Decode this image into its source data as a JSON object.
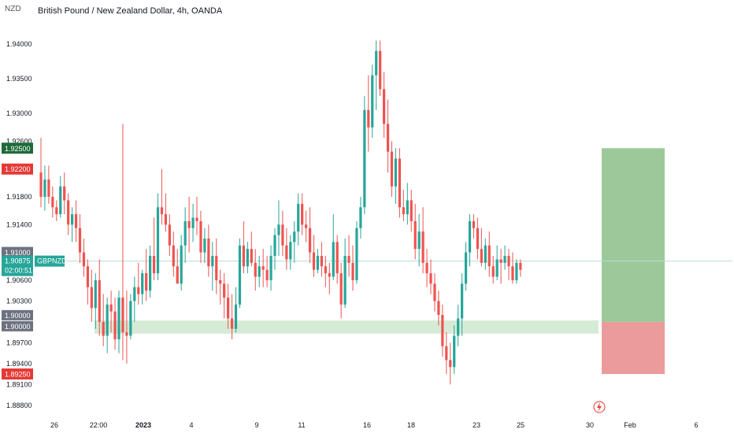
{
  "header": {
    "currency": "NZD",
    "title": "British Pound / New Zealand Dollar, 4h, OANDA"
  },
  "chart_data": {
    "type": "candlestick",
    "symbol": "GBPNZD",
    "timeframe": "4h",
    "ylim": [
      1.8865,
      1.9435
    ],
    "y_ticks": [
      "1.94000",
      "1.93500",
      "1.93000",
      "1.92600",
      "1.91800",
      "1.91400",
      "1.90600",
      "1.90300",
      "1.89700",
      "1.89400",
      "1.89100",
      "1.88800"
    ],
    "x_ticks": [
      "26",
      "22:00",
      "2023",
      "4",
      "9",
      "11",
      "16",
      "18",
      "23",
      "25",
      "30",
      "Feb",
      "6"
    ],
    "candles": [
      [
        1.9215,
        1.9265,
        1.9165,
        1.918
      ],
      [
        1.918,
        1.9225,
        1.916,
        1.9205
      ],
      [
        1.9205,
        1.9225,
        1.917,
        1.918
      ],
      [
        1.918,
        1.9195,
        1.915,
        1.9165
      ],
      [
        1.9165,
        1.9175,
        1.9145,
        1.9155
      ],
      [
        1.9155,
        1.921,
        1.915,
        1.9195
      ],
      [
        1.9195,
        1.9215,
        1.9155,
        1.9175
      ],
      [
        1.9175,
        1.9185,
        1.9125,
        1.914
      ],
      [
        1.914,
        1.9165,
        1.9115,
        1.9155
      ],
      [
        1.9155,
        1.9175,
        1.9115,
        1.9135
      ],
      [
        1.9135,
        1.9155,
        1.9085,
        1.91
      ],
      [
        1.91,
        1.912,
        1.9065,
        1.908
      ],
      [
        1.908,
        1.909,
        1.9025,
        1.905
      ],
      [
        1.905,
        1.9075,
        1.9,
        1.902
      ],
      [
        1.902,
        1.907,
        1.899,
        1.906
      ],
      [
        1.906,
        1.909,
        1.898,
        1.9
      ],
      [
        1.9,
        1.904,
        1.8965,
        1.898
      ],
      [
        1.898,
        1.9035,
        1.8955,
        1.9025
      ],
      [
        1.9025,
        1.9045,
        1.8985,
        1.9015
      ],
      [
        1.9015,
        1.9035,
        1.896,
        1.8975
      ],
      [
        1.8975,
        1.9045,
        1.8955,
        1.9035
      ],
      [
        1.9035,
        1.9285,
        1.8945,
        1.8985
      ],
      [
        1.8985,
        1.9045,
        1.894,
        1.898
      ],
      [
        1.898,
        1.904,
        1.8975,
        1.903
      ],
      [
        1.903,
        1.9065,
        1.9,
        1.905
      ],
      [
        1.905,
        1.9085,
        1.9025,
        1.904
      ],
      [
        1.904,
        1.9075,
        1.9025,
        1.907
      ],
      [
        1.907,
        1.9105,
        1.903,
        1.9045
      ],
      [
        1.9045,
        1.911,
        1.9035,
        1.9095
      ],
      [
        1.9095,
        1.915,
        1.906,
        1.907
      ],
      [
        1.907,
        1.9185,
        1.906,
        1.9165
      ],
      [
        1.9165,
        1.922,
        1.914,
        1.9155
      ],
      [
        1.9155,
        1.9185,
        1.913,
        1.914
      ],
      [
        1.914,
        1.9155,
        1.9095,
        1.911
      ],
      [
        1.911,
        1.913,
        1.9065,
        1.908
      ],
      [
        1.908,
        1.9105,
        1.9055,
        1.9055
      ],
      [
        1.9055,
        1.9125,
        1.9045,
        1.911
      ],
      [
        1.911,
        1.9165,
        1.9085,
        1.9145
      ],
      [
        1.9145,
        1.918,
        1.91,
        1.9135
      ],
      [
        1.9135,
        1.917,
        1.9115,
        1.915
      ],
      [
        1.915,
        1.918,
        1.9125,
        1.9145
      ],
      [
        1.9145,
        1.916,
        1.9085,
        1.91
      ],
      [
        1.91,
        1.9135,
        1.9085,
        1.912
      ],
      [
        1.912,
        1.914,
        1.9065,
        1.908
      ],
      [
        1.908,
        1.9115,
        1.9045,
        1.9095
      ],
      [
        1.9095,
        1.912,
        1.904,
        1.906
      ],
      [
        1.906,
        1.9075,
        1.9025,
        1.9055
      ],
      [
        1.9055,
        1.907,
        1.9005,
        1.9035
      ],
      [
        1.9035,
        1.9055,
        1.899,
        1.9005
      ],
      [
        1.9005,
        1.904,
        1.8975,
        1.899
      ],
      [
        1.899,
        1.905,
        1.8985,
        1.9025
      ],
      [
        1.9025,
        1.912,
        1.902,
        1.911
      ],
      [
        1.911,
        1.9145,
        1.907,
        1.908
      ],
      [
        1.908,
        1.9115,
        1.907,
        1.9105
      ],
      [
        1.9105,
        1.913,
        1.908,
        1.9085
      ],
      [
        1.9085,
        1.9105,
        1.9045,
        1.9065
      ],
      [
        1.9065,
        1.9095,
        1.905,
        1.908
      ],
      [
        1.908,
        1.9105,
        1.905,
        1.9075
      ],
      [
        1.9075,
        1.9095,
        1.905,
        1.906
      ],
      [
        1.906,
        1.911,
        1.9045,
        1.9095
      ],
      [
        1.9095,
        1.9135,
        1.9075,
        1.9125
      ],
      [
        1.9125,
        1.9175,
        1.9095,
        1.914
      ],
      [
        1.914,
        1.916,
        1.9095,
        1.911
      ],
      [
        1.911,
        1.9135,
        1.9075,
        1.909
      ],
      [
        1.909,
        1.9125,
        1.9075,
        1.9115
      ],
      [
        1.9115,
        1.9145,
        1.9085,
        1.913
      ],
      [
        1.913,
        1.9185,
        1.911,
        1.917
      ],
      [
        1.917,
        1.9185,
        1.9125,
        1.914
      ],
      [
        1.914,
        1.916,
        1.9115,
        1.9135
      ],
      [
        1.9135,
        1.9165,
        1.9085,
        1.91
      ],
      [
        1.91,
        1.9125,
        1.9065,
        1.9075
      ],
      [
        1.9075,
        1.9105,
        1.907,
        1.9095
      ],
      [
        1.9095,
        1.9115,
        1.9065,
        1.908
      ],
      [
        1.908,
        1.9095,
        1.905,
        1.907
      ],
      [
        1.907,
        1.9085,
        1.904,
        1.9065
      ],
      [
        1.9065,
        1.9155,
        1.906,
        1.9115
      ],
      [
        1.9115,
        1.9125,
        1.9055,
        1.907
      ],
      [
        1.907,
        1.9085,
        1.9005,
        1.9025
      ],
      [
        1.9025,
        1.912,
        1.902,
        1.9095
      ],
      [
        1.9095,
        1.9125,
        1.9065,
        1.9085
      ],
      [
        1.9085,
        1.911,
        1.9045,
        1.906
      ],
      [
        1.906,
        1.9145,
        1.9055,
        1.9135
      ],
      [
        1.9135,
        1.918,
        1.912,
        1.9165
      ],
      [
        1.9165,
        1.9325,
        1.9155,
        1.9305
      ],
      [
        1.9305,
        1.9355,
        1.9245,
        1.928
      ],
      [
        1.928,
        1.937,
        1.9265,
        1.9355
      ],
      [
        1.9355,
        1.9405,
        1.9305,
        1.939
      ],
      [
        1.939,
        1.9405,
        1.9325,
        1.9335
      ],
      [
        1.9335,
        1.936,
        1.9265,
        1.9285
      ],
      [
        1.9285,
        1.932,
        1.9215,
        1.9245
      ],
      [
        1.9245,
        1.926,
        1.918,
        1.9195
      ],
      [
        1.9195,
        1.925,
        1.917,
        1.9235
      ],
      [
        1.9235,
        1.925,
        1.915,
        1.9165
      ],
      [
        1.9165,
        1.919,
        1.9145,
        1.9155
      ],
      [
        1.9155,
        1.92,
        1.914,
        1.9175
      ],
      [
        1.9175,
        1.919,
        1.913,
        1.9145
      ],
      [
        1.9145,
        1.917,
        1.909,
        1.9105
      ],
      [
        1.9105,
        1.9155,
        1.908,
        1.913
      ],
      [
        1.913,
        1.9165,
        1.907,
        1.9085
      ],
      [
        1.9085,
        1.9105,
        1.905,
        1.907
      ],
      [
        1.907,
        1.909,
        1.904,
        1.9055
      ],
      [
        1.9055,
        1.907,
        1.9015,
        1.903
      ],
      [
        1.903,
        1.9045,
        1.8995,
        1.901
      ],
      [
        1.901,
        1.9025,
        1.895,
        1.8965
      ],
      [
        1.8965,
        1.8985,
        1.8925,
        1.8945
      ],
      [
        1.8945,
        1.897,
        1.891,
        1.8935
      ],
      [
        1.8935,
        1.8995,
        1.8925,
        1.898
      ],
      [
        1.898,
        1.9025,
        1.8965,
        1.9005
      ],
      [
        1.9005,
        1.907,
        1.898,
        1.9055
      ],
      [
        1.9055,
        1.9115,
        1.9045,
        1.91
      ],
      [
        1.91,
        1.9155,
        1.908,
        1.9145
      ],
      [
        1.9145,
        1.9155,
        1.912,
        1.9135
      ],
      [
        1.9135,
        1.915,
        1.909,
        1.9105
      ],
      [
        1.9105,
        1.9135,
        1.908,
        1.9085
      ],
      [
        1.9085,
        1.912,
        1.9075,
        1.911
      ],
      [
        1.911,
        1.913,
        1.9065,
        1.908
      ],
      [
        1.908,
        1.9095,
        1.9055,
        1.9065
      ],
      [
        1.9065,
        1.911,
        1.906,
        1.909
      ],
      [
        1.909,
        1.9105,
        1.9055,
        1.9085
      ],
      [
        1.9085,
        1.911,
        1.9075,
        1.9095
      ],
      [
        1.9095,
        1.9105,
        1.906,
        1.908
      ],
      [
        1.908,
        1.91,
        1.9055,
        1.906
      ],
      [
        1.906,
        1.909,
        1.9055,
        1.9085
      ],
      [
        1.9085,
        1.909,
        1.9065,
        1.9075
      ]
    ],
    "support_zone": {
      "from": 1.8983,
      "to": 1.9002,
      "color": "#cfe8cf"
    },
    "position": {
      "entry": 1.9,
      "target": 1.925,
      "stop": 1.8925,
      "profit_color": "#8cbf88",
      "loss_color": "#e88a8a"
    },
    "current_price_line": 1.90875,
    "price_labels": {
      "target": "1.92500",
      "p1": "1.92200",
      "p2": "1.91000",
      "p3": "1.91000",
      "current": "1.90875",
      "current_symbol": "GBPNZD",
      "countdown": "02:00:51",
      "entry1": "1.90000",
      "entry2": "1.90000",
      "stop": "1.89250"
    },
    "colors": {
      "up": "#26a69a",
      "down": "#ef5350",
      "current": "#26a69a",
      "target_bg": "#1e6b3a",
      "red_label": "#e53935",
      "gray_label": "#6d7280"
    }
  }
}
